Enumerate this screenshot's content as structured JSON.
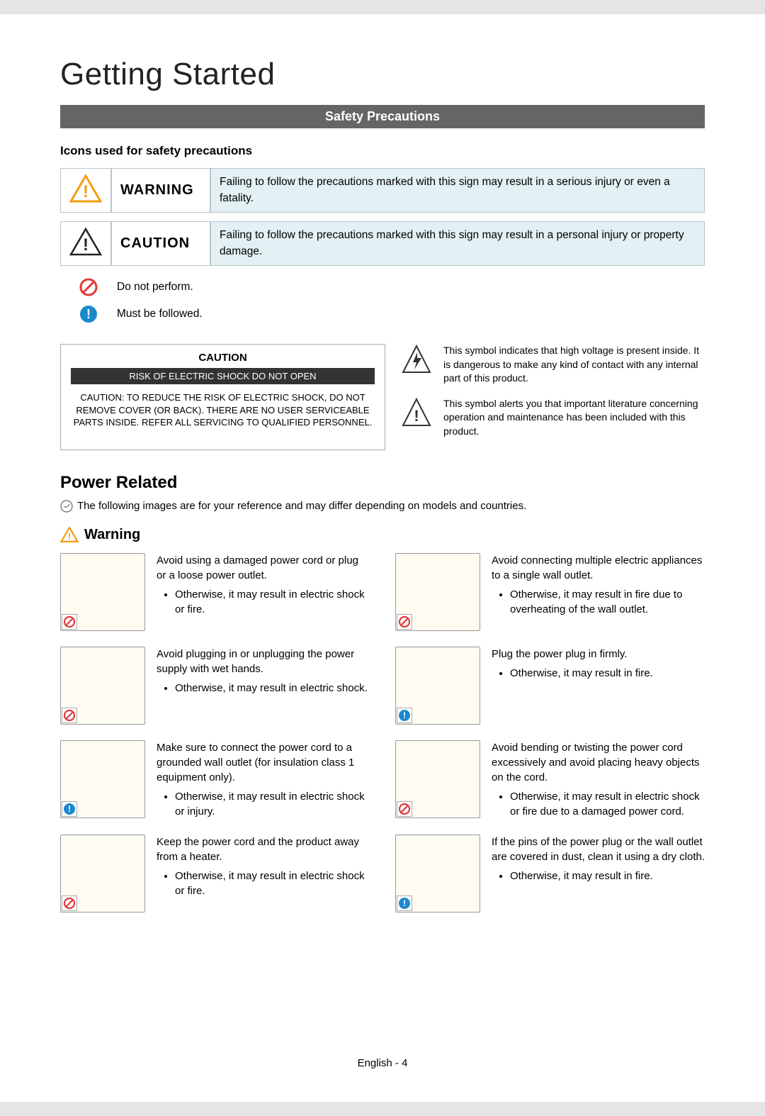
{
  "page": {
    "title": "Getting Started",
    "banner": "Safety Precautions",
    "iconsHeader": "Icons used for safety precautions",
    "footer": "English - 4"
  },
  "colors": {
    "warningOutline": "#f39c12",
    "warningFill": "#ffffff",
    "cautionStroke": "#222222",
    "prohibitStroke": "#e03a3a",
    "followFill": "#1a8acb",
    "descBg": "#e3f0f4"
  },
  "warningRow": {
    "label": "WARNING",
    "desc": "Failing to follow the precautions marked with this sign may result in a serious injury or even a fatality."
  },
  "cautionRow": {
    "label": "CAUTION",
    "desc": "Failing to follow the precautions marked with this sign may result in a personal injury or property damage."
  },
  "symbols": {
    "doNot": "Do not perform.",
    "follow": "Must be followed."
  },
  "shockBox": {
    "header": "CAUTION",
    "bar": "RISK OF ELECTRIC SHOCK DO NOT OPEN",
    "body": "CAUTION: TO REDUCE THE RISK OF ELECTRIC SHOCK, DO NOT REMOVE COVER (OR BACK). THERE ARE NO USER SERVICEABLE PARTS INSIDE. REFER ALL SERVICING TO QUALIFIED PERSONNEL."
  },
  "rightSymbols": {
    "bolt": "This symbol indicates that high voltage is present inside. It is dangerous to make any kind of contact with any internal part of this product.",
    "exclaim": "This symbol alerts you that important literature concerning operation and maintenance has been included with this product."
  },
  "power": {
    "heading": "Power Related",
    "note": "The following images are for your reference and may differ depending on models and countries.",
    "warningLabel": "Warning"
  },
  "items": [
    {
      "badge": "prohibit",
      "main": "Avoid using a damaged power cord or plug or a loose power outlet.",
      "sub": "Otherwise, it may result in electric shock or fire."
    },
    {
      "badge": "prohibit",
      "main": "Avoid connecting multiple electric appliances to a single wall outlet.",
      "sub": "Otherwise, it may result in fire due to overheating of the wall outlet."
    },
    {
      "badge": "prohibit",
      "main": "Avoid plugging in or unplugging the power supply with wet hands.",
      "sub": "Otherwise, it may result in electric shock."
    },
    {
      "badge": "follow",
      "main": "Plug the power plug in firmly.",
      "sub": "Otherwise, it may result in fire."
    },
    {
      "badge": "follow",
      "main": "Make sure to connect the power cord to a grounded wall outlet (for insulation class 1 equipment only).",
      "sub": "Otherwise, it may result in electric shock or injury."
    },
    {
      "badge": "prohibit",
      "main": "Avoid bending or twisting the power cord excessively and avoid placing heavy objects on the cord.",
      "sub": "Otherwise, it may result in electric shock or fire due to a damaged power cord."
    },
    {
      "badge": "prohibit",
      "main": "Keep the power cord and the product away from a heater.",
      "sub": "Otherwise, it may result in electric shock or fire."
    },
    {
      "badge": "follow",
      "main": "If the pins of the power plug or the wall outlet are covered in dust, clean it using a dry cloth.",
      "sub": "Otherwise, it may result in fire."
    }
  ]
}
